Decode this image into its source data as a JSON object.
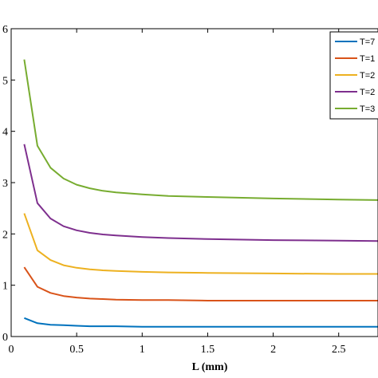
{
  "chart_data": {
    "type": "line",
    "xlabel": "L (mm)",
    "ylabel": "",
    "title": "",
    "xlim": [
      0,
      2.8
    ],
    "ylim": [
      0,
      0.6
    ],
    "xticks": [
      0,
      0.5,
      1,
      1.5,
      2,
      2.5
    ],
    "xtick_labels": [
      "0",
      "0.5",
      "1",
      "1.5",
      "2",
      "2.5"
    ],
    "yticks": [
      0,
      0.1,
      0.2,
      0.3,
      0.4,
      0.5,
      0.6
    ],
    "ytick_labels": [
      "0",
      "1",
      "2",
      "3",
      "4",
      "5",
      "6"
    ],
    "grid": false,
    "legend_position": "top-right",
    "x": [
      0.1,
      0.2,
      0.3,
      0.4,
      0.5,
      0.6,
      0.7,
      0.8,
      1.0,
      1.2,
      1.5,
      2.0,
      2.5,
      2.8
    ],
    "series": [
      {
        "name": "T=7",
        "color": "#0072BD",
        "values": [
          0.036,
          0.026,
          0.023,
          0.022,
          0.021,
          0.02,
          0.02,
          0.02,
          0.019,
          0.019,
          0.019,
          0.019,
          0.019,
          0.019
        ]
      },
      {
        "name": "T=1",
        "color": "#D95319",
        "values": [
          0.135,
          0.097,
          0.085,
          0.079,
          0.076,
          0.074,
          0.073,
          0.072,
          0.071,
          0.071,
          0.07,
          0.07,
          0.07,
          0.07
        ]
      },
      {
        "name": "T=2",
        "color": "#EDB120",
        "values": [
          0.24,
          0.168,
          0.149,
          0.139,
          0.134,
          0.131,
          0.129,
          0.128,
          0.126,
          0.125,
          0.124,
          0.123,
          0.122,
          0.122
        ]
      },
      {
        "name": "T=2",
        "color": "#7E2F8E",
        "values": [
          0.375,
          0.26,
          0.23,
          0.215,
          0.207,
          0.202,
          0.199,
          0.197,
          0.194,
          0.192,
          0.19,
          0.188,
          0.187,
          0.186
        ]
      },
      {
        "name": "T=3",
        "color": "#77AC30",
        "values": [
          0.54,
          0.372,
          0.329,
          0.308,
          0.296,
          0.289,
          0.284,
          0.281,
          0.277,
          0.274,
          0.272,
          0.269,
          0.267,
          0.266
        ]
      }
    ]
  }
}
